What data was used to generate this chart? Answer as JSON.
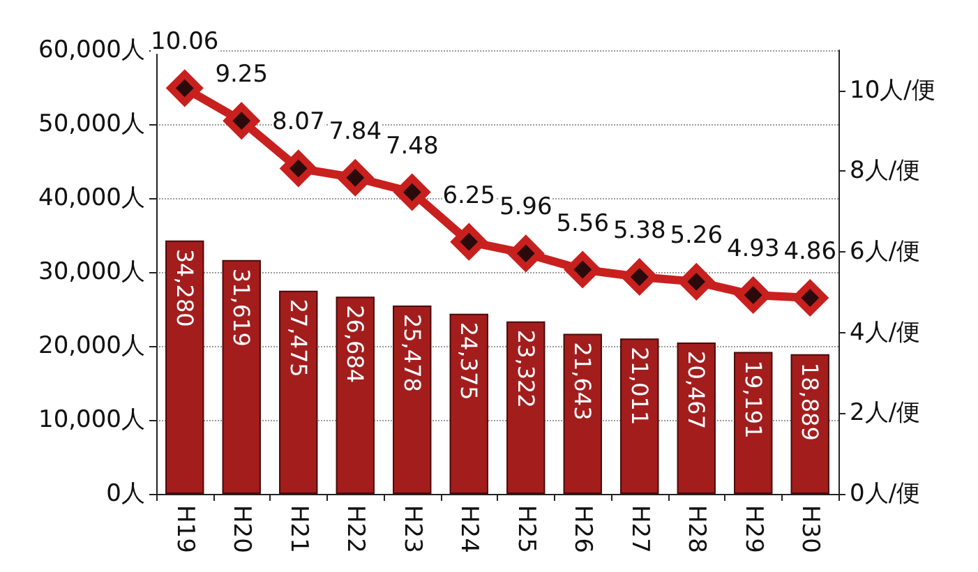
{
  "chart_data": {
    "type": "bar",
    "categories": [
      "H19",
      "H20",
      "H21",
      "H22",
      "H23",
      "H24",
      "H25",
      "H26",
      "H27",
      "H28",
      "H29",
      "H30"
    ],
    "series": [
      {
        "color": "#a31d1d",
        "values": [
          34280,
          31619,
          27475,
          26684,
          25478,
          24375,
          23322,
          21643,
          21011,
          20467,
          19191,
          18889
        ],
        "value_labels": [
          "34,280",
          "31,619",
          "27,475",
          "26,684",
          "25,478",
          "24,375",
          "23,322",
          "21,643",
          "21,011",
          "20,467",
          "19,191",
          "18,889"
        ]
      },
      {
        "type": "line",
        "axis": "y2",
        "color": "#c8201e",
        "marker": "diamond",
        "values": [
          10.06,
          9.25,
          8.07,
          7.84,
          7.48,
          6.25,
          5.96,
          5.56,
          5.38,
          5.26,
          4.93,
          4.86
        ],
        "value_labels": [
          "10.06",
          "9.25",
          "8.07",
          "7.84",
          "7.48",
          "6.25",
          "5.96",
          "5.56",
          "5.38",
          "5.26",
          "4.93",
          "4.86"
        ]
      }
    ],
    "ylim": [
      0,
      60000
    ],
    "yticks": [
      {
        "value": 0,
        "label": "0人"
      },
      {
        "value": 10000,
        "label": "10,000人"
      },
      {
        "value": 20000,
        "label": "20,000人"
      },
      {
        "value": 30000,
        "label": "30,000人"
      },
      {
        "value": 40000,
        "label": "40,000人"
      },
      {
        "value": 50000,
        "label": "50,000人"
      },
      {
        "value": 60000,
        "label": "60,000人"
      }
    ],
    "y2lim": [
      0,
      11
    ],
    "y2ticks": [
      {
        "value": 0,
        "label": "0人/便"
      },
      {
        "value": 2,
        "label": "2人/便"
      },
      {
        "value": 4,
        "label": "4人/便"
      },
      {
        "value": 6,
        "label": "6人/便"
      },
      {
        "value": 8,
        "label": "8人/便"
      },
      {
        "value": 10,
        "label": "10人/便"
      }
    ],
    "grid": "y"
  }
}
